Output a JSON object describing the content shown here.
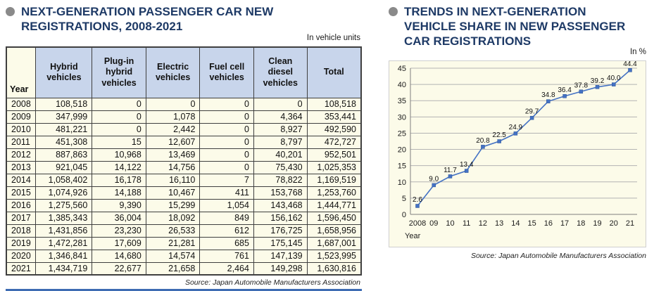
{
  "colors": {
    "title_navy": "#1e3a66",
    "bullet_gray": "#8a8a8a",
    "table_header_fill": "#c8d5eb",
    "panel_cream": "#fcfbe9",
    "line_blue": "#4472c4",
    "bottom_rule_blue": "#3e6cb3"
  },
  "icons": {
    "left_bullet": "filled-circle",
    "right_bullet": "filled-circle"
  },
  "chart_data": [
    {
      "type": "table",
      "title": "NEXT-GENERATION PASSENGER CAR NEW REGISTRATIONS, 2008-2021",
      "unit": "In vehicle units",
      "columns": [
        "Year",
        "Hybrid vehicles",
        "Plug-in hybrid vehicles",
        "Electric vehicles",
        "Fuel cell vehicles",
        "Clean diesel vehicles",
        "Total"
      ],
      "rows": [
        [
          "2008",
          "108,518",
          "0",
          "0",
          "0",
          "0",
          "108,518"
        ],
        [
          "2009",
          "347,999",
          "0",
          "1,078",
          "0",
          "4,364",
          "353,441"
        ],
        [
          "2010",
          "481,221",
          "0",
          "2,442",
          "0",
          "8,927",
          "492,590"
        ],
        [
          "2011",
          "451,308",
          "15",
          "12,607",
          "0",
          "8,797",
          "472,727"
        ],
        [
          "2012",
          "887,863",
          "10,968",
          "13,469",
          "0",
          "40,201",
          "952,501"
        ],
        [
          "2013",
          "921,045",
          "14,122",
          "14,756",
          "0",
          "75,430",
          "1,025,353"
        ],
        [
          "2014",
          "1,058,402",
          "16,178",
          "16,110",
          "7",
          "78,822",
          "1,169,519"
        ],
        [
          "2015",
          "1,074,926",
          "14,188",
          "10,467",
          "411",
          "153,768",
          "1,253,760"
        ],
        [
          "2016",
          "1,275,560",
          "9,390",
          "15,299",
          "1,054",
          "143,468",
          "1,444,771"
        ],
        [
          "2017",
          "1,385,343",
          "36,004",
          "18,092",
          "849",
          "156,162",
          "1,596,450"
        ],
        [
          "2018",
          "1,431,856",
          "23,230",
          "26,533",
          "612",
          "176,725",
          "1,658,956"
        ],
        [
          "2019",
          "1,472,281",
          "17,609",
          "21,281",
          "685",
          "175,145",
          "1,687,001"
        ],
        [
          "2020",
          "1,346,841",
          "14,680",
          "14,574",
          "761",
          "147,139",
          "1,523,995"
        ],
        [
          "2021",
          "1,434,719",
          "22,677",
          "21,658",
          "2,464",
          "149,298",
          "1,630,816"
        ]
      ],
      "source": "Source: Japan Automobile Manufacturers Association"
    },
    {
      "type": "line",
      "title": "TRENDS IN NEXT-GENERATION VEHICLE SHARE IN NEW PASSENGER CAR REGISTRATIONS",
      "unit": "In %",
      "x": [
        "2008",
        "09",
        "10",
        "11",
        "12",
        "13",
        "14",
        "15",
        "16",
        "17",
        "18",
        "19",
        "20",
        "21"
      ],
      "values": [
        2.6,
        9.0,
        11.7,
        13.4,
        20.8,
        22.5,
        24.9,
        29.7,
        34.8,
        36.4,
        37.8,
        39.2,
        40.0,
        44.4
      ],
      "xlabel": "Year",
      "ylabel": "In %",
      "ylim": [
        0,
        45
      ],
      "ytick_step": 5,
      "grid": true,
      "legend": "none",
      "marker": "square",
      "line_color": "#4472c4",
      "source": "Source: Japan Automobile Manufacturers Association"
    }
  ]
}
